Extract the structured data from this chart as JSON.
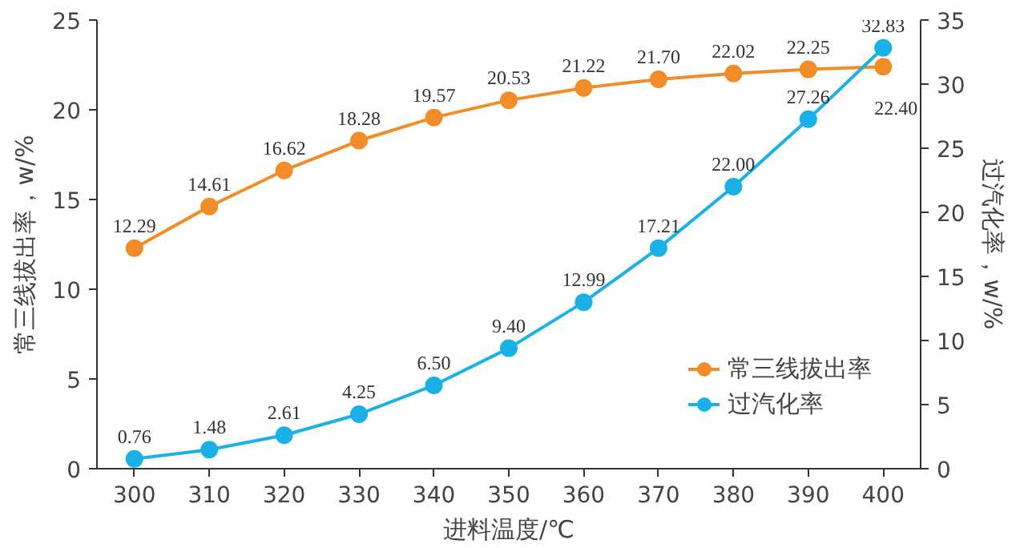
{
  "chart_data": {
    "type": "line",
    "xlabel": "进料温度/℃",
    "ylabel": "常三线拔出率，w/%",
    "y2label": "过汽化率，w/%",
    "x": [
      300,
      310,
      320,
      330,
      340,
      350,
      360,
      370,
      380,
      390,
      400
    ],
    "xlim": [
      295,
      405
    ],
    "xticks": [
      300,
      310,
      320,
      330,
      340,
      350,
      360,
      370,
      380,
      390,
      400
    ],
    "ylim": [
      0,
      25
    ],
    "yticks": [
      0,
      5,
      10,
      15,
      20,
      25
    ],
    "y2lim": [
      0,
      35
    ],
    "y2ticks": [
      0,
      5,
      10,
      15,
      20,
      25,
      30,
      35
    ],
    "series": [
      {
        "name": "常三线拔出率",
        "color": "#f28c28",
        "values": [
          12.29,
          14.61,
          16.62,
          18.28,
          19.57,
          20.53,
          21.22,
          21.7,
          22.02,
          22.25,
          22.4
        ],
        "value_labels": [
          "12.29",
          "14.61",
          "16.62",
          "18.28",
          "19.57",
          "20.53",
          "21.22",
          "21.70",
          "22.02",
          "22.25",
          "22.40"
        ]
      },
      {
        "name": "过汽化率",
        "color": "#1ab0e8",
        "axis": "y2",
        "values": [
          0.76,
          1.48,
          2.61,
          4.25,
          6.5,
          9.4,
          12.99,
          17.21,
          22.0,
          27.26,
          32.83
        ],
        "value_labels": [
          "0.76",
          "1.48",
          "2.61",
          "4.25",
          "6.50",
          "9.40",
          "12.99",
          "17.21",
          "22.00",
          "27.26",
          "32.83"
        ]
      }
    ],
    "marker": "circle",
    "line_style": "solid",
    "grid": false,
    "legend": "bottom right"
  }
}
